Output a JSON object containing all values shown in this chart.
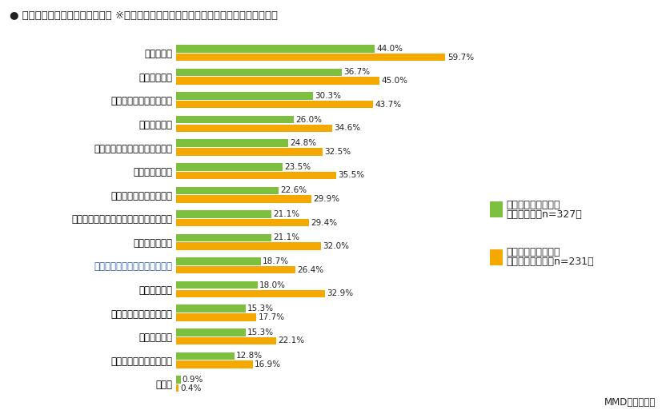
{
  "title": "● 食材宅配サービスに求めること ※ネット注文食材宅配の現在利用者、検討者・興味者別",
  "categories": [
    "食材の鮮度",
    "国産・地場産",
    "季節感がある・旬の食材",
    "割高感の解消",
    "タイムセールや割引などの増加",
    "添加物への配慮",
    "ポイントの貯まりやすさ",
    "各食材の生産者や生産メーカーが分かる",
    "消費期限の長さ",
    "より細かい配達日時・時間指定",
    "豊富な栄養分",
    "有機栽培・オーガニック",
    "環境への配慮",
    "放射能検査済表記の有無",
    "その他"
  ],
  "green_values": [
    44.0,
    36.7,
    30.3,
    26.0,
    24.8,
    23.5,
    22.6,
    21.1,
    21.1,
    18.7,
    18.0,
    15.3,
    15.3,
    12.8,
    0.9
  ],
  "yellow_values": [
    59.7,
    45.0,
    43.7,
    34.6,
    32.5,
    35.5,
    29.9,
    29.4,
    32.0,
    26.4,
    32.9,
    17.7,
    22.1,
    16.9,
    0.4
  ],
  "green_color": "#7dc040",
  "yellow_color": "#f5a800",
  "background_color": "#ffffff",
  "legend_green_label1": "ネット注文食材宅配",
  "legend_green_label2": "現在利用者（n=327）",
  "legend_yellow_label1": "ネット注文食材宅配",
  "legend_yellow_label2": "検討者・興味者（n=231）",
  "footer": "MMD研究所調べ",
  "xlim_max": 68,
  "bar_height": 0.32,
  "title_fontsize": 9.5,
  "label_fontsize": 8.5,
  "value_fontsize": 7.5,
  "legend_fontsize": 9.0,
  "footer_fontsize": 8.5
}
